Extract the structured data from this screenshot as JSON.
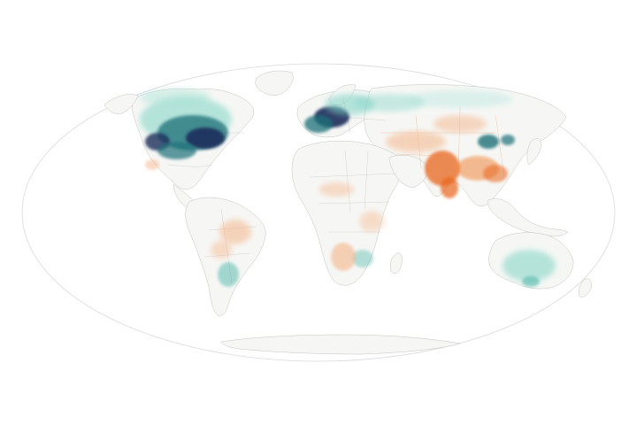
{
  "map": {
    "projection": "mollweide",
    "colors": {
      "background": "#ffffff",
      "land": "#f6f7f5",
      "outline": "#dadada",
      "increase_strong": "#1f2f5c",
      "increase_mid": "#1f6f78",
      "increase_light": "#7fd3c4",
      "decrease_light": "#f4b58a",
      "decrease_strong": "#e8651a"
    },
    "features": [
      {
        "name": "north-america",
        "trend": "increase"
      },
      {
        "name": "europe",
        "trend": "increase"
      },
      {
        "name": "south-america",
        "trend": "mixed"
      },
      {
        "name": "africa",
        "trend": "mixed"
      },
      {
        "name": "india",
        "trend": "decrease"
      },
      {
        "name": "east-asia",
        "trend": "mixed"
      },
      {
        "name": "australia",
        "trend": "increase"
      }
    ]
  }
}
